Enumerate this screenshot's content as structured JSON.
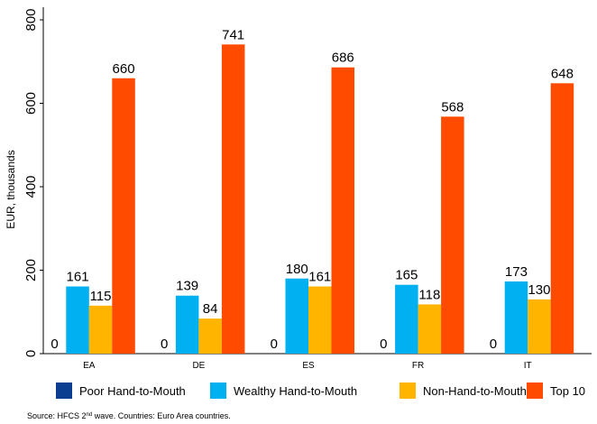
{
  "chart_data": {
    "type": "bar",
    "ylabel": "EUR, thousands",
    "xlabel": "",
    "ylim": [
      0,
      800
    ],
    "yticks": [
      0,
      200,
      400,
      600,
      800
    ],
    "categories": [
      "EA",
      "DE",
      "ES",
      "FR",
      "IT"
    ],
    "series": [
      {
        "name": "Poor Hand-to-Mouth",
        "color": "#0b3d91",
        "values": [
          0,
          0,
          0,
          0,
          0
        ]
      },
      {
        "name": "Wealthy Hand-to-Mouth",
        "color": "#00b0f0",
        "values": [
          161,
          139,
          180,
          165,
          173
        ]
      },
      {
        "name": "Non-Hand-to-Mouth",
        "color": "#ffb400",
        "values": [
          115,
          84,
          161,
          118,
          130
        ]
      },
      {
        "name": "Top 10",
        "color": "#ff4b00",
        "values": [
          660,
          741,
          686,
          568,
          648
        ]
      }
    ],
    "grid": false,
    "legend_position": "bottom"
  },
  "source": {
    "prefix": "Source: HFCS 2",
    "superscript": "nd",
    "suffix": " wave. Countries: Euro Area countries."
  }
}
